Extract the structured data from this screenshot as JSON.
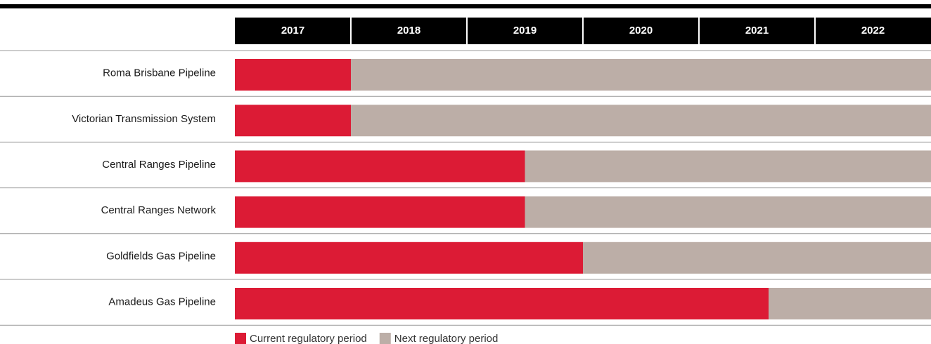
{
  "chart_data": {
    "type": "gantt",
    "categories": [
      "Roma Brisbane Pipeline",
      "Victorian Transmission System",
      "Central Ranges Pipeline",
      "Central Ranges Network",
      "Goldfields Gas Pipeline",
      "Amadeus Gas Pipeline"
    ],
    "series": [
      {
        "name": "Current regulatory period",
        "color": "#dc1b35",
        "values": [
          2018,
          2018,
          2019.5,
          2019.5,
          2020,
          2021.6
        ]
      },
      {
        "name": "Next regulatory period",
        "color": "#bcaea7"
      }
    ],
    "xlim": [
      2017,
      2023
    ],
    "xticks": [
      2017,
      2018,
      2019,
      2020,
      2021,
      2022
    ],
    "header_color": "#000000"
  }
}
